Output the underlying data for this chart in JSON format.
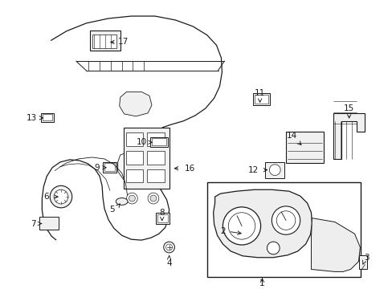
{
  "title": "",
  "background_color": "#ffffff",
  "line_color": "#1a1a1a",
  "fig_width": 4.89,
  "fig_height": 3.6,
  "dpi": 100
}
